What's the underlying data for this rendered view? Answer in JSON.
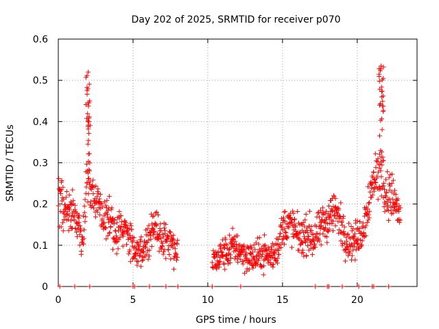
{
  "chart_data": {
    "type": "scatter",
    "title": "Day 202 of 2025, SRMTID for receiver p070",
    "xlabel": "GPS time / hours",
    "ylabel": "SRMTID / TECUs",
    "xlim": [
      0,
      24
    ],
    "ylim": [
      0,
      0.6
    ],
    "xticks": [
      0,
      5,
      10,
      15,
      20
    ],
    "xtick_labels": [
      "0",
      "5",
      "10",
      "15",
      "20"
    ],
    "yticks": [
      0,
      0.1,
      0.2,
      0.3,
      0.4,
      0.5,
      0.6
    ],
    "ytick_labels": [
      "0",
      "0.1",
      "0.2",
      "0.3",
      "0.4",
      "0.5",
      "0.6"
    ],
    "grid": true,
    "marker": "+",
    "series_color": "#ff0000",
    "series": [
      {
        "name": "SRMTID",
        "profile_description_hours_value": [
          [
            0.0,
            0.2
          ],
          [
            0.2,
            0.21
          ],
          [
            0.5,
            0.18
          ],
          [
            0.8,
            0.19
          ],
          [
            1.0,
            0.2
          ],
          [
            1.3,
            0.15
          ],
          [
            1.6,
            0.11
          ],
          [
            1.8,
            0.18
          ],
          [
            1.95,
            0.27
          ],
          [
            2.1,
            0.24
          ],
          [
            2.4,
            0.21
          ],
          [
            2.7,
            0.2
          ],
          [
            3.0,
            0.17
          ],
          [
            3.3,
            0.16
          ],
          [
            3.6,
            0.15
          ],
          [
            3.9,
            0.13
          ],
          [
            4.2,
            0.14
          ],
          [
            4.5,
            0.13
          ],
          [
            4.8,
            0.12
          ],
          [
            5.1,
            0.1
          ],
          [
            5.4,
            0.08
          ],
          [
            5.7,
            0.09
          ],
          [
            6.0,
            0.12
          ],
          [
            6.3,
            0.15
          ],
          [
            6.6,
            0.13
          ],
          [
            6.9,
            0.12
          ],
          [
            7.2,
            0.11
          ],
          [
            7.5,
            0.1
          ],
          [
            7.8,
            0.08
          ],
          [
            8.0,
            0.07
          ],
          [
            10.3,
            0.07
          ],
          [
            10.6,
            0.06
          ],
          [
            10.9,
            0.08
          ],
          [
            11.2,
            0.08
          ],
          [
            11.5,
            0.09
          ],
          [
            11.8,
            0.1
          ],
          [
            12.1,
            0.09
          ],
          [
            12.4,
            0.08
          ],
          [
            12.7,
            0.07
          ],
          [
            13.0,
            0.07
          ],
          [
            13.3,
            0.07
          ],
          [
            13.6,
            0.08
          ],
          [
            13.9,
            0.08
          ],
          [
            14.2,
            0.07
          ],
          [
            14.5,
            0.08
          ],
          [
            14.8,
            0.11
          ],
          [
            15.0,
            0.14
          ],
          [
            15.3,
            0.15
          ],
          [
            15.6,
            0.15
          ],
          [
            15.9,
            0.13
          ],
          [
            16.2,
            0.12
          ],
          [
            16.5,
            0.12
          ],
          [
            16.8,
            0.13
          ],
          [
            17.1,
            0.11
          ],
          [
            17.4,
            0.13
          ],
          [
            17.7,
            0.15
          ],
          [
            18.0,
            0.16
          ],
          [
            18.3,
            0.18
          ],
          [
            18.6,
            0.18
          ],
          [
            18.9,
            0.15
          ],
          [
            19.2,
            0.12
          ],
          [
            19.5,
            0.11
          ],
          [
            19.8,
            0.11
          ],
          [
            20.1,
            0.12
          ],
          [
            20.4,
            0.14
          ],
          [
            20.7,
            0.2
          ],
          [
            21.0,
            0.24
          ],
          [
            21.2,
            0.28
          ],
          [
            21.4,
            0.26
          ],
          [
            21.6,
            0.3
          ],
          [
            21.8,
            0.24
          ],
          [
            22.0,
            0.22
          ],
          [
            22.3,
            0.22
          ],
          [
            22.6,
            0.2
          ],
          [
            22.9,
            0.16
          ]
        ],
        "peaks": [
          {
            "x": 2.0,
            "y": 0.52
          },
          {
            "x": 21.6,
            "y": 0.535
          }
        ],
        "zero_values_hours": [
          0.1,
          1.1,
          2.1,
          5.0,
          5.1,
          6.1,
          7.2,
          8.0,
          10.3,
          12.2,
          17.2,
          18.0,
          18.1,
          19.0,
          20.1,
          21.0,
          21.1,
          22.1
        ]
      }
    ]
  }
}
